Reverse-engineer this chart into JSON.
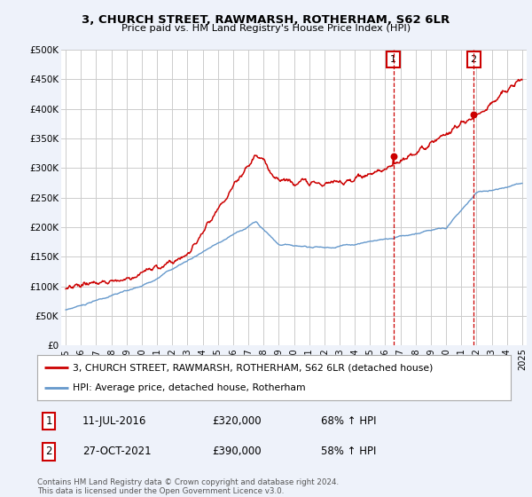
{
  "title1": "3, CHURCH STREET, RAWMARSH, ROTHERHAM, S62 6LR",
  "title2": "Price paid vs. HM Land Registry's House Price Index (HPI)",
  "legend_line1": "3, CHURCH STREET, RAWMARSH, ROTHERHAM, S62 6LR (detached house)",
  "legend_line2": "HPI: Average price, detached house, Rotherham",
  "marker1_date": "11-JUL-2016",
  "marker1_price": "£320,000",
  "marker1_hpi": "68% ↑ HPI",
  "marker2_date": "27-OCT-2021",
  "marker2_price": "£390,000",
  "marker2_hpi": "58% ↑ HPI",
  "footer": "Contains HM Land Registry data © Crown copyright and database right 2024.\nThis data is licensed under the Open Government Licence v3.0.",
  "red_color": "#cc0000",
  "blue_color": "#6699cc",
  "background_color": "#eef2fa",
  "plot_bg": "#ffffff",
  "grid_color": "#cccccc",
  "ylim": [
    0,
    500000
  ],
  "yticks": [
    0,
    50000,
    100000,
    150000,
    200000,
    250000,
    300000,
    350000,
    400000,
    450000,
    500000
  ],
  "xlim_start": 1994.7,
  "xlim_end": 2025.3,
  "xticks": [
    1995,
    1996,
    1997,
    1998,
    1999,
    2000,
    2001,
    2002,
    2003,
    2004,
    2005,
    2006,
    2007,
    2008,
    2009,
    2010,
    2011,
    2012,
    2013,
    2014,
    2015,
    2016,
    2017,
    2018,
    2019,
    2020,
    2021,
    2022,
    2023,
    2024,
    2025
  ]
}
